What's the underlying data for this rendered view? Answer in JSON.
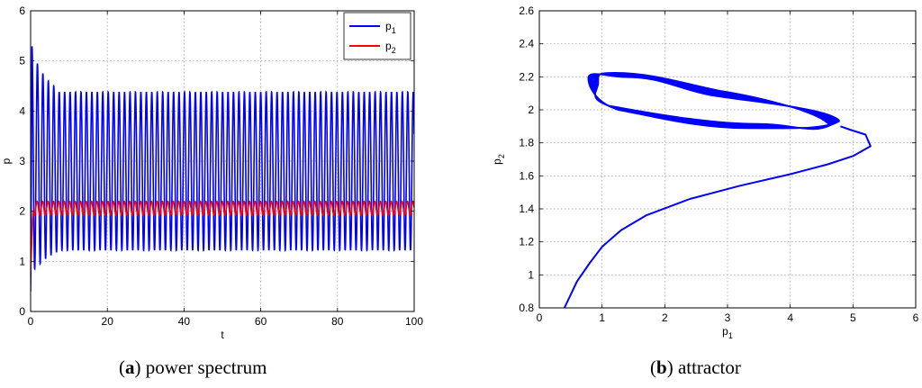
{
  "chart_data": [
    {
      "type": "line",
      "caption_letter": "a",
      "caption_text": "power spectrum",
      "xlabel": "t",
      "ylabel": "p",
      "xlim": [
        0,
        100
      ],
      "ylim": [
        0,
        6
      ],
      "xticks": [
        "0",
        "20",
        "40",
        "60",
        "80",
        "100"
      ],
      "yticks": [
        "0",
        "1",
        "2",
        "3",
        "4",
        "5",
        "6"
      ],
      "grid": true,
      "legend_position": "top-right",
      "series": [
        {
          "name": "p1",
          "legend_base": "p",
          "legend_sub": "1",
          "color": "#0000ff",
          "initial": 0.4,
          "period": 1.42,
          "first_peaks": [
            5.3,
            4.95,
            4.75,
            4.6,
            4.5
          ],
          "first_troughs": [
            0.85,
            0.95,
            1.05,
            1.12,
            1.18
          ],
          "steady_max": 4.38,
          "steady_min": 1.22
        },
        {
          "name": "p2",
          "legend_base": "p",
          "legend_sub": "2",
          "color": "#ff0000",
          "initial": 0.8,
          "period": 1.42,
          "steady_max": 2.2,
          "steady_min": 1.92
        }
      ]
    },
    {
      "type": "line",
      "caption_letter": "b",
      "caption_text": "attractor",
      "xlabel_base": "p",
      "xlabel_sub": "1",
      "ylabel_base": "p",
      "ylabel_sub": "2",
      "xlim": [
        0,
        6
      ],
      "ylim": [
        0.8,
        2.6
      ],
      "xticks": [
        "0",
        "1",
        "2",
        "3",
        "4",
        "5",
        "6"
      ],
      "yticks": [
        "0.8",
        "1",
        "1.2",
        "1.4",
        "1.6",
        "1.8",
        "2",
        "2.2",
        "2.4",
        "2.6"
      ],
      "grid": true,
      "series": [
        {
          "name": "trajectory",
          "color": "#0000ff",
          "transient": [
            [
              0.4,
              0.8
            ],
            [
              0.6,
              0.96
            ],
            [
              0.8,
              1.07
            ],
            [
              1.0,
              1.17
            ],
            [
              1.3,
              1.27
            ],
            [
              1.7,
              1.36
            ],
            [
              2.4,
              1.46
            ],
            [
              3.2,
              1.54
            ],
            [
              4.0,
              1.61
            ],
            [
              4.6,
              1.67
            ],
            [
              5.0,
              1.72
            ],
            [
              5.28,
              1.78
            ],
            [
              5.2,
              1.85
            ],
            [
              4.95,
              1.88
            ],
            [
              4.8,
              1.9
            ]
          ],
          "cycle_start": [
            4.8,
            1.9
          ],
          "cycle_end": [
            4.5,
            1.93
          ],
          "cycle_loops": 9,
          "cycle_right": [
            4.72,
            1.92
          ],
          "cycle_bottom_mid": [
            3.4,
            1.9
          ],
          "cycle_left_bottom": [
            1.2,
            2.01
          ],
          "cycle_left": [
            0.85,
            2.18
          ],
          "cycle_top": [
            1.3,
            2.21
          ],
          "cycle_top_mid": [
            2.8,
            2.1
          ]
        }
      ]
    }
  ]
}
